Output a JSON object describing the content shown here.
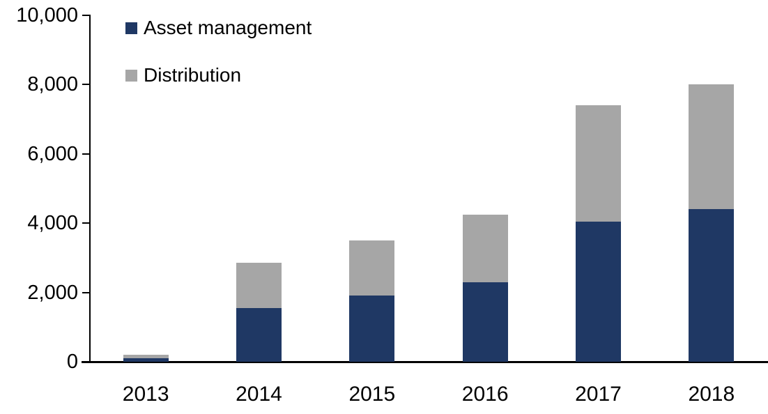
{
  "chart_data": {
    "type": "bar",
    "subtype": "stacked-column",
    "title": "",
    "xlabel": "",
    "ylabel": "",
    "categories": [
      "2013",
      "2014",
      "2015",
      "2016",
      "2017",
      "2018"
    ],
    "series": [
      {
        "name": "Asset management",
        "color": "#1F3864",
        "values": [
          100,
          1550,
          1900,
          2300,
          4050,
          4400
        ]
      },
      {
        "name": "Distribution",
        "color": "#A6A6A6",
        "values": [
          100,
          1300,
          1600,
          1950,
          3350,
          3600
        ]
      }
    ],
    "totals": [
      200,
      2850,
      3500,
      4250,
      7400,
      8000
    ],
    "ylim": [
      0,
      10000
    ],
    "ytick_step": 2000,
    "ytick_labels": [
      "0",
      "2,000",
      "4,000",
      "6,000",
      "8,000",
      "10,000"
    ],
    "grid": false,
    "legend_position": "top-left",
    "axis_color": "#000000",
    "background_color": "#FFFFFF"
  }
}
